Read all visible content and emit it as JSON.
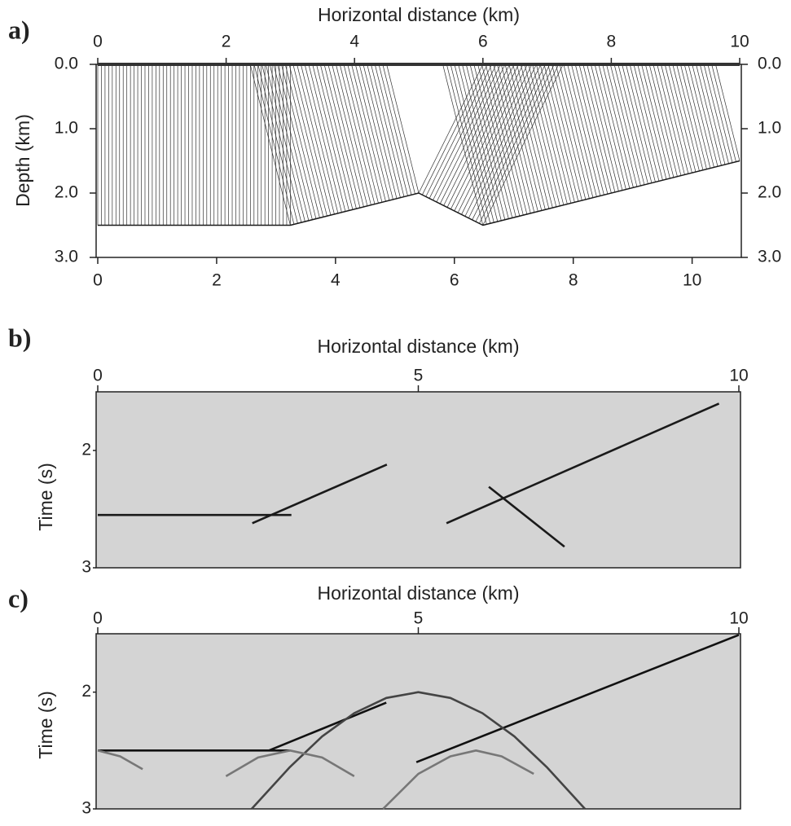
{
  "chart_data": [
    {
      "type": "line",
      "panel_label": "a)",
      "xlabel": "Horizontal distance (km)",
      "ylabel": "Depth (km)",
      "xlim": [
        0,
        10
      ],
      "xticks": [
        0,
        2,
        4,
        6,
        8,
        10
      ],
      "x2lim": [
        0,
        10.8
      ],
      "x2ticks": [
        0,
        2,
        4,
        6,
        8,
        10
      ],
      "ylim": [
        0,
        3
      ],
      "y_inverted": true,
      "yticks": [
        {
          "value": 0,
          "label": "0.0"
        },
        {
          "value": 1,
          "label": "1.0"
        },
        {
          "value": 2,
          "label": "2.0"
        },
        {
          "value": 3,
          "label": "3.0"
        }
      ],
      "normal_rays": true,
      "series": [
        {
          "color": "#1a1a1a",
          "x": [
            0,
            3,
            5,
            6,
            10
          ],
          "values": [
            2.5,
            2.5,
            2.0,
            2.5,
            1.5
          ]
        }
      ]
    },
    {
      "type": "line",
      "panel_label": "b)",
      "xlabel": "Horizontal distance (km)",
      "ylabel": "Time (s)",
      "xlim": [
        0,
        10
      ],
      "xticks": [
        0,
        5,
        10
      ],
      "ylim": [
        1.5,
        3
      ],
      "y_inverted": true,
      "yticks": [
        2,
        3
      ],
      "background": "#d4d4d4",
      "series": [
        {
          "color": "#1a1a1a",
          "x": [
            0,
            3.02
          ],
          "values": [
            2.55,
            2.55
          ]
        },
        {
          "color": "#1a1a1a",
          "x": [
            2.41,
            4.51
          ],
          "values": [
            2.62,
            2.12
          ]
        },
        {
          "color": "#1a1a1a",
          "x": [
            5.44,
            9.69
          ],
          "values": [
            2.62,
            1.6
          ]
        },
        {
          "color": "#1a1a1a",
          "x": [
            6.1,
            7.28
          ],
          "values": [
            2.31,
            2.82
          ]
        }
      ]
    },
    {
      "type": "line",
      "panel_label": "c)",
      "xlabel": "Horizontal distance (km)",
      "ylabel": "Time (s)",
      "xlim": [
        0,
        10
      ],
      "xticks": [
        0,
        5,
        10
      ],
      "ylim": [
        1.5,
        3
      ],
      "y_inverted": true,
      "yticks": [
        2,
        3
      ],
      "background": "#d4d4d4",
      "series": [
        {
          "color": "#111111",
          "x": [
            0,
            3.0
          ],
          "values": [
            2.5,
            2.5
          ]
        },
        {
          "color": "#111111",
          "x": [
            2.67,
            4.5
          ],
          "values": [
            2.5,
            2.09
          ]
        },
        {
          "color": "#111111",
          "x": [
            4.97,
            10
          ],
          "values": [
            2.6,
            1.51
          ]
        },
        {
          "color": "#444444",
          "x": [
            2.4,
            3,
            3.5,
            4,
            4.5,
            5,
            5.5,
            6,
            6.5,
            7,
            7.6
          ],
          "values": [
            3.0,
            2.64,
            2.38,
            2.18,
            2.05,
            2.0,
            2.05,
            2.18,
            2.38,
            2.64,
            3.0
          ]
        },
        {
          "color": "#777777",
          "x": [
            2,
            2.5,
            3,
            3.5,
            4
          ],
          "values": [
            2.72,
            2.56,
            2.5,
            2.56,
            2.72
          ]
        },
        {
          "color": "#777777",
          "x": [
            0,
            0.35,
            0.7
          ],
          "values": [
            2.5,
            2.55,
            2.66
          ]
        },
        {
          "color": "#777777",
          "x": [
            4.45,
            5,
            5.5,
            5.9,
            6.3,
            6.8
          ],
          "values": [
            3.0,
            2.7,
            2.55,
            2.5,
            2.55,
            2.7
          ]
        }
      ]
    }
  ]
}
